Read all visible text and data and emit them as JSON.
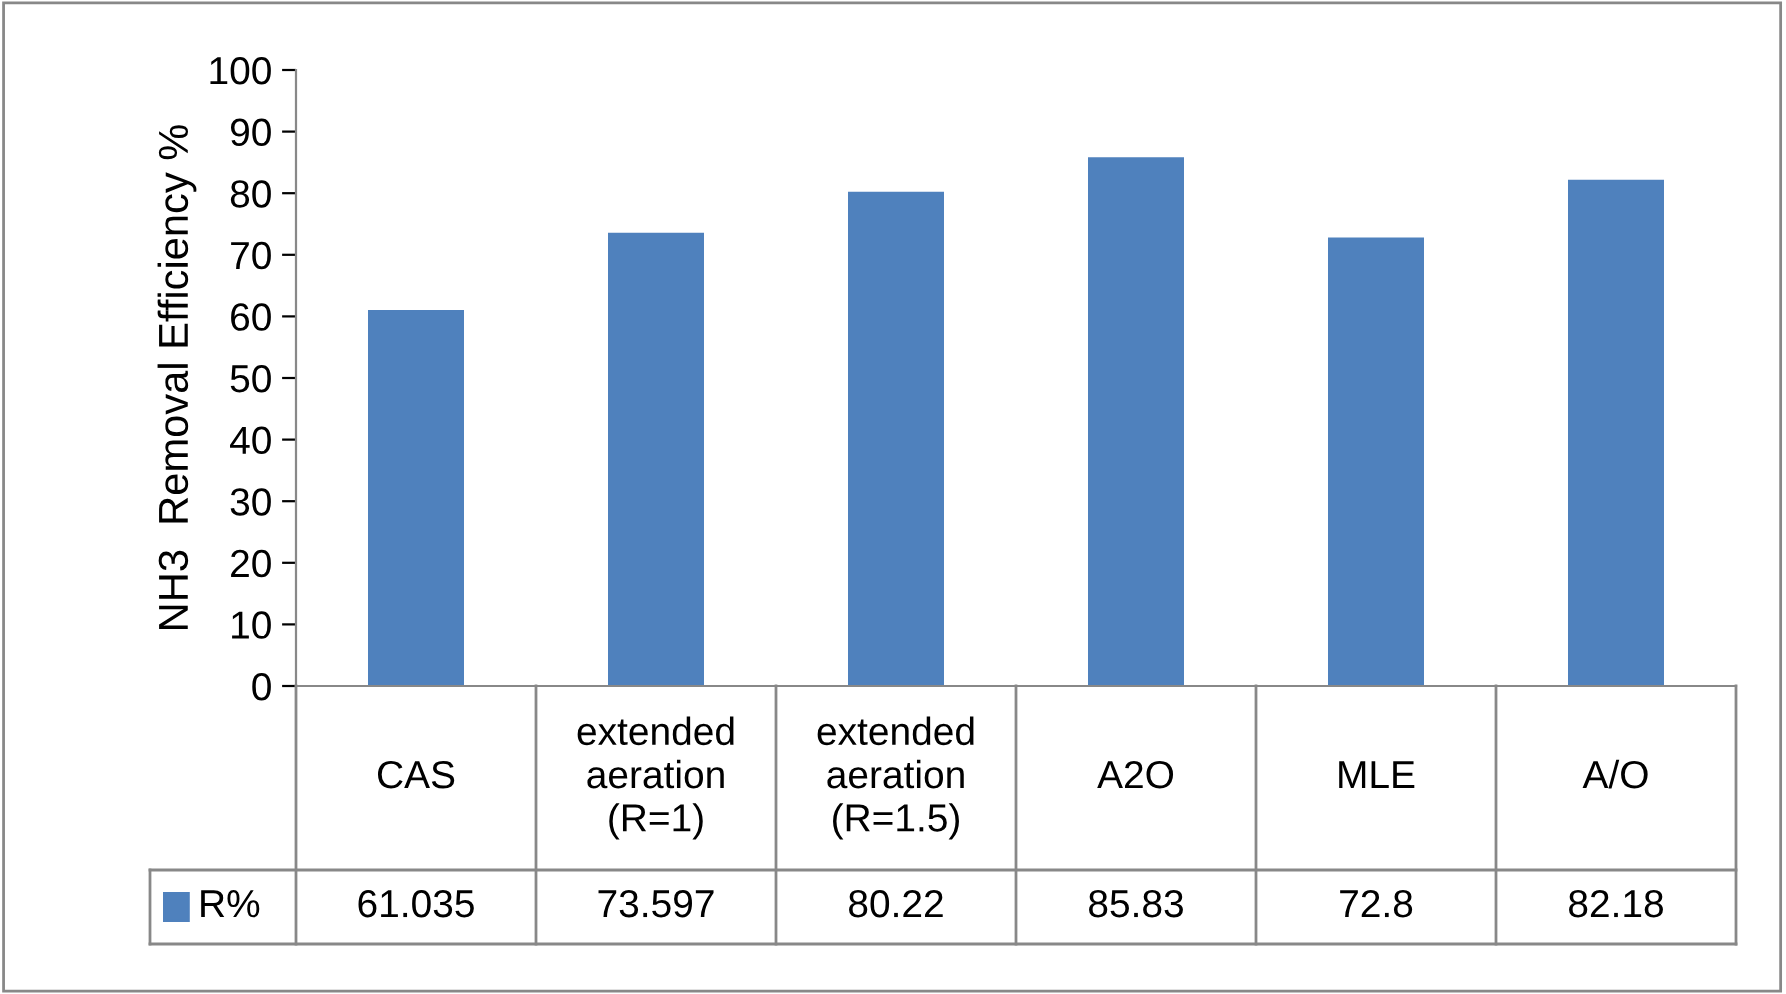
{
  "chart_data": {
    "type": "bar",
    "ylabel": "NH3  Removal Efficiency %",
    "categories": [
      "CAS",
      "extended aeration (R=1)",
      "extended aeration (R=1.5)",
      "A2O",
      "MLE",
      "A/O"
    ],
    "series": [
      {
        "name": "R%",
        "color": "#4f81bd",
        "values": [
          61.035,
          73.597,
          80.22,
          85.83,
          72.8,
          82.18
        ]
      }
    ],
    "ylim": [
      0,
      100
    ],
    "yticks": [
      0,
      10,
      20,
      30,
      40,
      50,
      60,
      70,
      80,
      90,
      100
    ],
    "data_labels": true,
    "legend": "bottom",
    "grid": false
  }
}
